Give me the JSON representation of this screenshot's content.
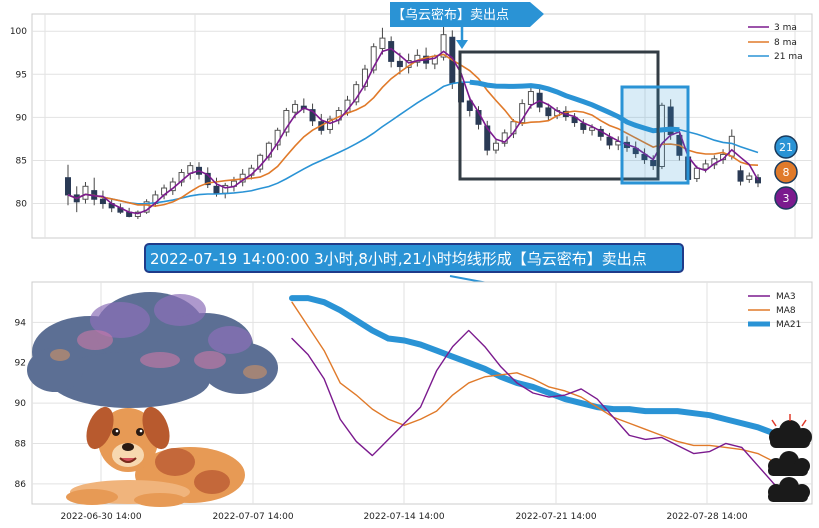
{
  "banner_top": "【乌云密布】卖出点",
  "banner_main": "2022-07-19 14:00:00 3小时,8小时,21小时均线形成【乌云密布】卖出点",
  "colors": {
    "ma3": "#7b1a8e",
    "ma8": "#e07a2a",
    "ma21": "#2a93d5",
    "banner": "#2a93d5",
    "up": "#555555",
    "down": "#2a3a55"
  },
  "chart_data": [
    {
      "type": "line",
      "subtype": "candlestick-with-moving-averages",
      "ylim": [
        76,
        102
      ],
      "yticks": [
        80,
        85,
        90,
        95,
        100
      ],
      "ytick_labels": [
        "80",
        "85",
        "90",
        "95",
        "100"
      ],
      "grid": true,
      "legend_placement": "top-right",
      "legend": [
        "3 ma",
        "8 ma",
        "21 ma"
      ],
      "badges": [
        "21",
        "8",
        "3"
      ],
      "candles": [
        [
          83,
          84.5,
          81,
          79.8
        ],
        [
          81,
          82,
          80.2,
          79
        ],
        [
          80.5,
          82.5,
          82,
          80
        ],
        [
          81.5,
          83,
          80.5,
          79.8
        ],
        [
          80.5,
          81.5,
          80,
          79.4
        ],
        [
          80,
          80.5,
          79.5,
          79
        ],
        [
          79.5,
          80,
          79,
          78.8
        ],
        [
          79,
          79.5,
          78.5,
          78.4
        ],
        [
          78.5,
          79.2,
          79,
          78.2
        ],
        [
          79,
          80.5,
          80.2,
          78.8
        ],
        [
          80,
          81.5,
          81,
          79.6
        ],
        [
          81,
          82.2,
          81.8,
          80.5
        ],
        [
          81.5,
          83,
          82.5,
          81
        ],
        [
          82.5,
          84,
          83.6,
          82
        ],
        [
          83.5,
          84.8,
          84.4,
          82.8
        ],
        [
          84.2,
          84.8,
          83.4,
          82.8
        ],
        [
          83.5,
          84.2,
          82.2,
          81.8
        ],
        [
          82,
          83,
          81.2,
          80.8
        ],
        [
          81.2,
          82.4,
          82.1,
          80.6
        ],
        [
          82,
          83.1,
          82.6,
          81.4
        ],
        [
          82.5,
          84,
          83.4,
          82
        ],
        [
          83.3,
          84.5,
          84.1,
          82.8
        ],
        [
          84,
          85.8,
          85.6,
          83.6
        ],
        [
          85.4,
          87.2,
          87,
          85
        ],
        [
          86.8,
          88.8,
          88.5,
          86.2
        ],
        [
          88.3,
          91.1,
          90.8,
          87.8
        ],
        [
          90.6,
          92,
          91.5,
          89.9
        ],
        [
          91.3,
          92.2,
          91,
          90.5
        ],
        [
          90.9,
          91.6,
          89.6,
          89
        ],
        [
          89.5,
          90.4,
          88.5,
          88
        ],
        [
          88.6,
          90.2,
          89.8,
          88.1
        ],
        [
          89.7,
          91.2,
          90.8,
          89.2
        ],
        [
          90.6,
          92.5,
          92,
          90.2
        ],
        [
          91.8,
          94.2,
          93.8,
          91.4
        ],
        [
          93.6,
          96.1,
          95.6,
          93.1
        ],
        [
          95.5,
          98.6,
          98.2,
          95.1
        ],
        [
          98,
          100.4,
          99.2,
          97.3
        ],
        [
          98.8,
          99.4,
          96.5,
          95.8
        ],
        [
          96.5,
          97.5,
          95.9,
          95
        ],
        [
          95.8,
          97.4,
          96.6,
          95.1
        ],
        [
          96.4,
          97.9,
          97.2,
          95.9
        ],
        [
          97.1,
          98.1,
          96.3,
          95.6
        ],
        [
          96.2,
          97.3,
          97.1,
          95.6
        ],
        [
          97,
          100.6,
          99.6,
          96.6
        ],
        [
          99.3,
          100.1,
          94,
          93.3
        ],
        [
          94,
          94.6,
          91.8,
          91.1
        ],
        [
          91.9,
          92.4,
          90.8,
          90.1
        ],
        [
          90.8,
          91.3,
          89.2,
          88.6
        ],
        [
          89,
          89.6,
          86.2,
          85.6
        ],
        [
          86.2,
          87.4,
          87,
          85.8
        ],
        [
          87,
          88.6,
          88.2,
          86.6
        ],
        [
          88.1,
          89.8,
          89.5,
          87.6
        ],
        [
          89.4,
          92.1,
          91.6,
          89
        ],
        [
          91.5,
          93.6,
          93,
          91
        ],
        [
          92.8,
          93.3,
          91.2,
          90.6
        ],
        [
          91.1,
          91.6,
          90.2,
          89.6
        ],
        [
          90.2,
          91.2,
          90.8,
          89.8
        ],
        [
          90.7,
          91.3,
          90.1,
          89.6
        ],
        [
          90,
          90.5,
          89.4,
          88.9
        ],
        [
          89.3,
          89.8,
          88.6,
          88.1
        ],
        [
          88.5,
          89.2,
          88.8,
          87.9
        ],
        [
          88.6,
          89,
          87.8,
          87.3
        ],
        [
          87.7,
          88.2,
          86.8,
          86.3
        ],
        [
          86.8,
          87.8,
          87.2,
          86.2
        ],
        [
          87.1,
          87.8,
          86.5,
          86
        ],
        [
          86.4,
          87.2,
          85.8,
          85.3
        ],
        [
          85.7,
          86.4,
          85.1,
          84.6
        ],
        [
          85,
          85.6,
          84.4,
          83.9
        ],
        [
          84.3,
          91.7,
          91.4,
          84
        ],
        [
          91.2,
          92.1,
          88,
          87.4
        ],
        [
          87.9,
          88.4,
          85.6,
          85
        ],
        [
          85.4,
          85.9,
          82.8,
          82.2
        ],
        [
          82.9,
          84.4,
          84.1,
          82.5
        ],
        [
          84,
          85.1,
          84.6,
          83.6
        ],
        [
          84.5,
          85.6,
          85.2,
          84
        ],
        [
          85.1,
          86.3,
          85.7,
          84.6
        ],
        [
          85.5,
          88.6,
          87.8,
          85.1
        ],
        [
          83.8,
          84.4,
          82.6,
          82.1
        ],
        [
          82.8,
          83.6,
          83.2,
          82.4
        ],
        [
          83,
          83.4,
          82.4,
          81.9
        ]
      ]
    },
    {
      "type": "line",
      "ylim": [
        85,
        96
      ],
      "yticks": [
        86,
        88,
        90,
        92,
        94
      ],
      "ytick_labels": [
        "86",
        "88",
        "90",
        "92",
        "94"
      ],
      "xtick_labels": [
        "2022-06-30 14:00",
        "2022-07-07 14:00",
        "2022-07-14 14:00",
        "2022-07-21 14:00",
        "2022-07-28 14:00"
      ],
      "grid": true,
      "legend_placement": "top-right",
      "series": [
        {
          "name": "MA3",
          "values": [
            93.2,
            92.4,
            91.2,
            89.2,
            88.1,
            87.4,
            88.2,
            89.0,
            89.8,
            91.6,
            92.8,
            93.6,
            92.8,
            91.8,
            91.0,
            90.5,
            90.3,
            90.4,
            90.7,
            90.2,
            89.3,
            88.4,
            88.2,
            88.3,
            87.9,
            87.5,
            87.6,
            88.0,
            87.8,
            86.9,
            86.0,
            85.3
          ]
        },
        {
          "name": "MA8",
          "values": [
            95.0,
            93.8,
            92.6,
            91.0,
            90.4,
            89.7,
            89.2,
            88.9,
            89.2,
            89.6,
            90.4,
            91.0,
            91.3,
            91.4,
            91.5,
            91.2,
            90.8,
            90.6,
            90.3,
            89.8,
            89.3,
            89.0,
            88.7,
            88.4,
            88.1,
            87.9,
            87.9,
            87.8,
            87.7,
            87.5,
            87.1,
            86.7
          ]
        },
        {
          "name": "MA21",
          "values": [
            95.2,
            95.2,
            95.0,
            94.6,
            94.1,
            93.6,
            93.2,
            93.1,
            92.9,
            92.6,
            92.3,
            92.0,
            91.7,
            91.3,
            91.0,
            90.8,
            90.5,
            90.2,
            90.0,
            89.8,
            89.7,
            89.7,
            89.6,
            89.6,
            89.6,
            89.5,
            89.4,
            89.2,
            89.0,
            88.8,
            88.5,
            88.2
          ]
        }
      ]
    }
  ]
}
